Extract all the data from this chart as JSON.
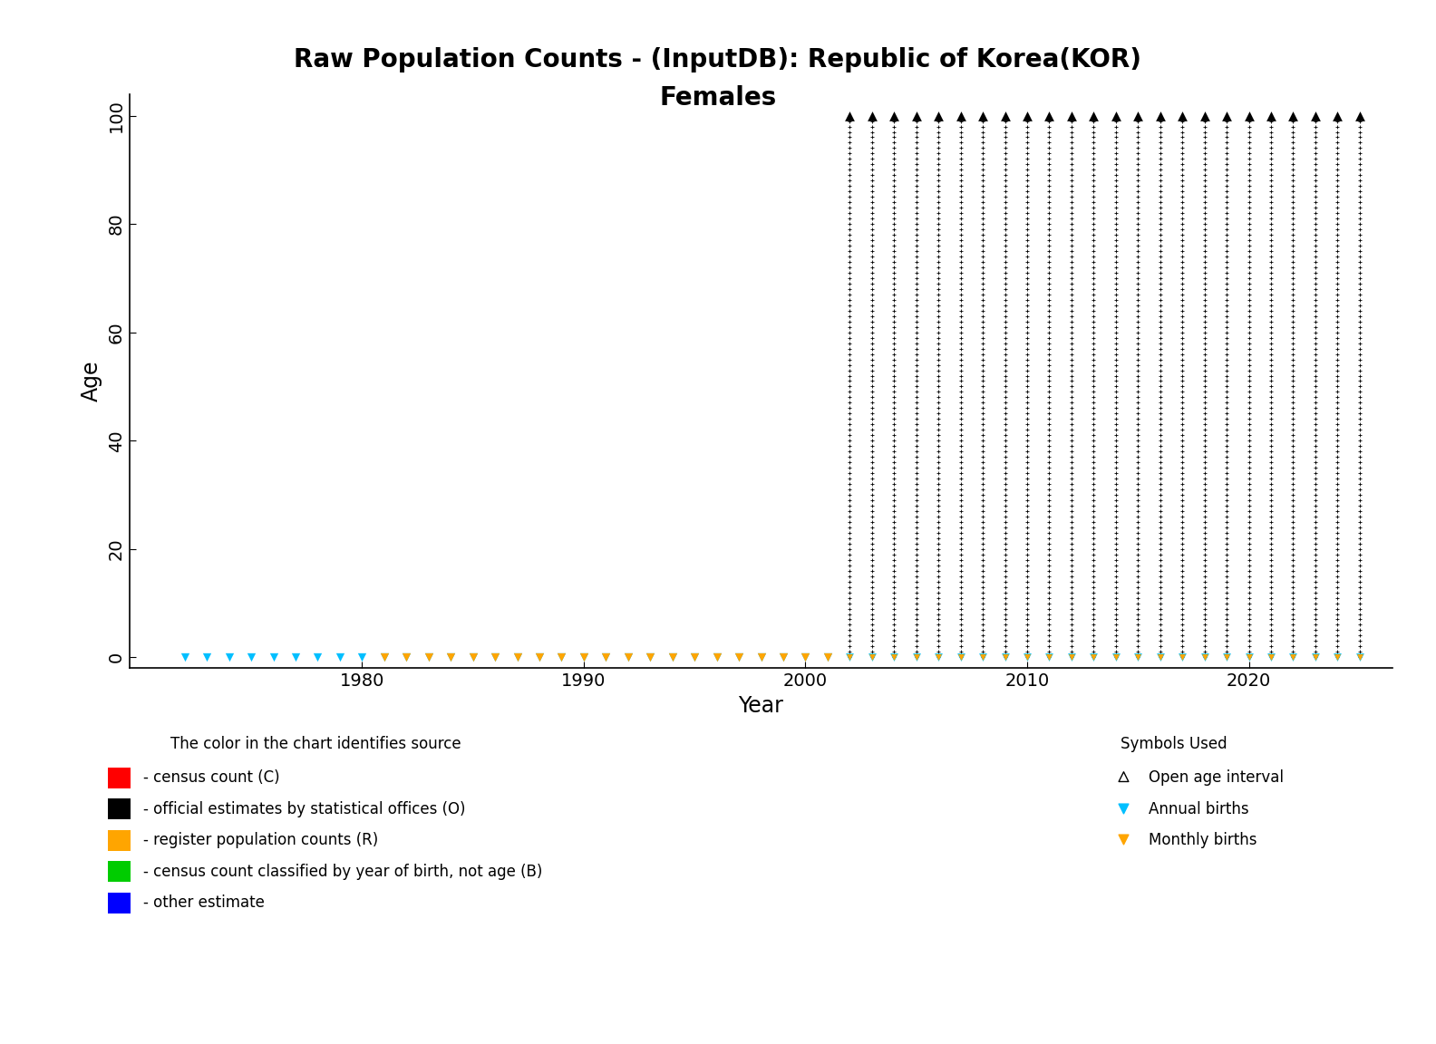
{
  "title_line1": "Raw Population Counts - (InputDB): Republic of Korea(KOR)",
  "title_line2": "Females",
  "xlabel": "Year",
  "ylabel": "Age",
  "xlim": [
    1969.5,
    2026.5
  ],
  "ylim": [
    -2,
    104
  ],
  "yticks": [
    0,
    20,
    40,
    60,
    80,
    100
  ],
  "xticks": [
    1980,
    1990,
    2000,
    2010,
    2020
  ],
  "annual_births_years_early": [
    1972,
    1973,
    1974,
    1975,
    1976,
    1977,
    1978,
    1979,
    1980,
    1981,
    1982,
    1983,
    1984,
    1985,
    1986,
    1987,
    1988,
    1989,
    1990,
    1991,
    1992,
    1993,
    1994,
    1995,
    1996,
    1997,
    1998,
    1999,
    2000,
    2001
  ],
  "monthly_births_years_early": [
    1981,
    1982,
    1983,
    1984,
    1985,
    1986,
    1987,
    1988,
    1989,
    1990,
    1991,
    1992,
    1993,
    1994,
    1995,
    1996,
    1997,
    1998,
    1999,
    2000,
    2001
  ],
  "dense_years": [
    2002,
    2003,
    2004,
    2005,
    2006,
    2007,
    2008,
    2009,
    2010,
    2011,
    2012,
    2013,
    2014,
    2015,
    2016,
    2017,
    2018,
    2019,
    2020,
    2021,
    2022,
    2023,
    2024,
    2025
  ],
  "age_min": 0,
  "age_max": 100,
  "open_age_y": 100,
  "annual_births_color": "#00BFFF",
  "monthly_births_color": "#FFA500",
  "black_color": "#000000",
  "background_color": "#FFFFFF",
  "legend_color_items": [
    {
      "color": "#FF0000",
      "label": "- census count (C)"
    },
    {
      "color": "#000000",
      "label": "- official estimates by statistical offices (O)"
    },
    {
      "color": "#FFA500",
      "label": "- register population counts (R)"
    },
    {
      "color": "#00CC00",
      "label": "- census count classified by year of birth, not age (B)"
    },
    {
      "color": "#0000FF",
      "label": "- other estimate"
    }
  ],
  "legend_symbol_items": [
    {
      "marker": "^",
      "color": "#000000",
      "label": "Open age interval"
    },
    {
      "marker": "v",
      "color": "#00BFFF",
      "label": "Annual births"
    },
    {
      "marker": "v",
      "color": "#FFA500",
      "label": "Monthly births"
    }
  ]
}
